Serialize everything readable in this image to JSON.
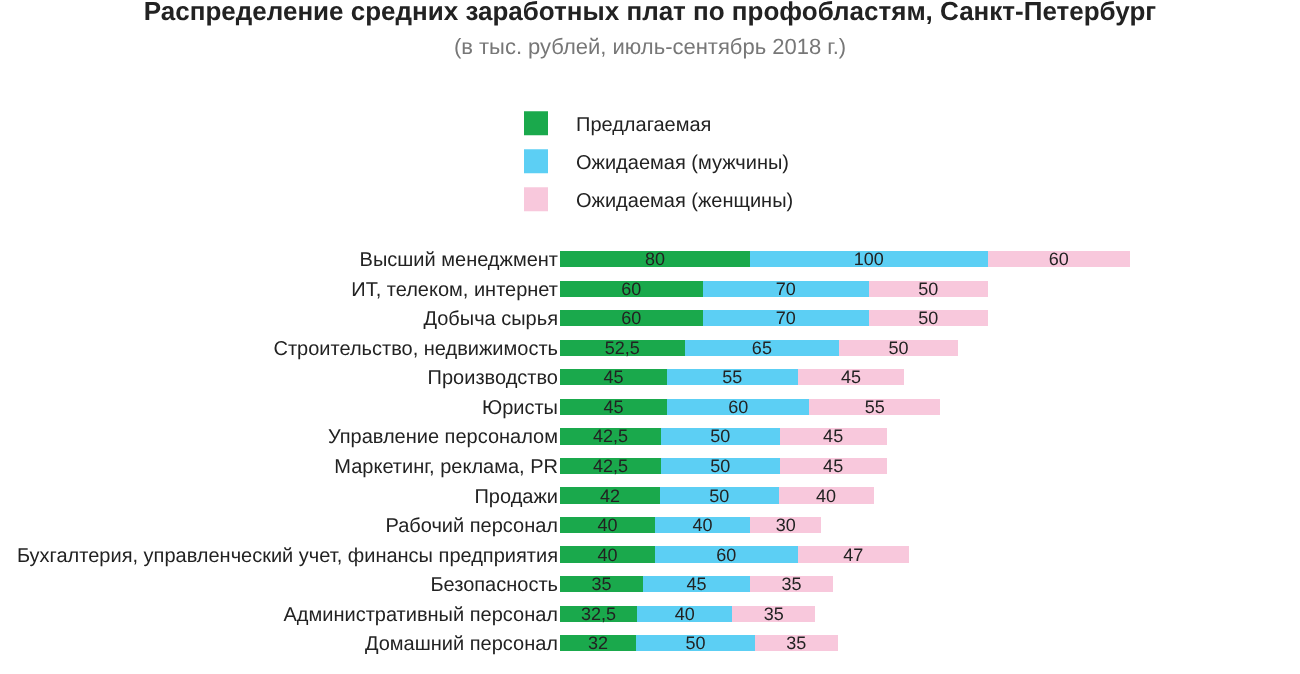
{
  "chart_data": {
    "type": "bar",
    "orientation": "horizontal",
    "stacked": true,
    "title": "Распределение средних заработных плат по профобластям, Санкт-Петербург",
    "subtitle": "(в тыс. рублей, июль-сентябрь 2018 г.)",
    "categories": [
      "Высший менеджмент",
      "ИТ, телеком, интернет",
      "Добыча сырья",
      "Строительство, недвижимость",
      "Производство",
      "Юристы",
      "Управление персоналом",
      "Маркетинг, реклама, PR",
      "Продажи",
      "Рабочий персонал",
      "Бухгалтерия, управленческий учет, финансы предприятия",
      "Безопасность",
      "Административный персонал",
      "Домашний персонал"
    ],
    "series": [
      {
        "name": "Предлагаемая",
        "color": "#1aa94c",
        "values": [
          80,
          60,
          60,
          52.5,
          45,
          45,
          42.5,
          42.5,
          42,
          40,
          40,
          35,
          32.5,
          32
        ],
        "value_labels": [
          "80",
          "60",
          "60",
          "52,5",
          "45",
          "45",
          "42,5",
          "42,5",
          "42",
          "40",
          "40",
          "35",
          "32,5",
          "32"
        ]
      },
      {
        "name": "Ожидаемая (мужчины)",
        "color": "#5ccff4",
        "values": [
          100,
          70,
          70,
          65,
          55,
          60,
          50,
          50,
          50,
          40,
          60,
          45,
          40,
          50
        ],
        "value_labels": [
          "100",
          "70",
          "70",
          "65",
          "55",
          "60",
          "50",
          "50",
          "50",
          "40",
          "60",
          "45",
          "40",
          "50"
        ]
      },
      {
        "name": "Ожидаемая (женщины)",
        "color": "#f8c8dc",
        "values": [
          60,
          50,
          50,
          50,
          45,
          55,
          45,
          45,
          40,
          30,
          47,
          35,
          35,
          35
        ],
        "value_labels": [
          "60",
          "50",
          "50",
          "50",
          "45",
          "55",
          "45",
          "45",
          "40",
          "30",
          "47",
          "35",
          "35",
          "35"
        ]
      }
    ],
    "legend": "top",
    "tick_labels": "y"
  }
}
